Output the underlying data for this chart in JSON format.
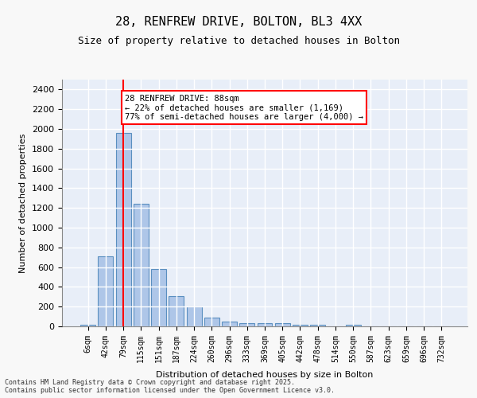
{
  "title1": "28, RENFREW DRIVE, BOLTON, BL3 4XX",
  "title2": "Size of property relative to detached houses in Bolton",
  "xlabel": "Distribution of detached houses by size in Bolton",
  "ylabel": "Number of detached properties",
  "categories": [
    "6sqm",
    "42sqm",
    "79sqm",
    "115sqm",
    "151sqm",
    "187sqm",
    "224sqm",
    "260sqm",
    "296sqm",
    "333sqm",
    "369sqm",
    "405sqm",
    "442sqm",
    "478sqm",
    "514sqm",
    "550sqm",
    "587sqm",
    "623sqm",
    "659sqm",
    "696sqm",
    "732sqm"
  ],
  "values": [
    15,
    710,
    1960,
    1240,
    580,
    305,
    200,
    85,
    48,
    35,
    35,
    30,
    20,
    20,
    0,
    20,
    0,
    0,
    0,
    0,
    0
  ],
  "bar_color": "#aec6e8",
  "bar_edge_color": "#5a8fc0",
  "background_color": "#e8eef8",
  "grid_color": "#ffffff",
  "annotation_box_color": "#cc0000",
  "property_size": 88,
  "property_bin_index": 2,
  "annotation_line1": "28 RENFREW DRIVE: 88sqm",
  "annotation_line2": "← 22% of detached houses are smaller (1,169)",
  "annotation_line3": "77% of semi-detached houses are larger (4,000) →",
  "red_line_x": 2,
  "ylim": [
    0,
    2500
  ],
  "yticks": [
    0,
    200,
    400,
    600,
    800,
    1000,
    1200,
    1400,
    1600,
    1800,
    2000,
    2200,
    2400
  ],
  "footer": "Contains HM Land Registry data © Crown copyright and database right 2025.\nContains public sector information licensed under the Open Government Licence v3.0."
}
